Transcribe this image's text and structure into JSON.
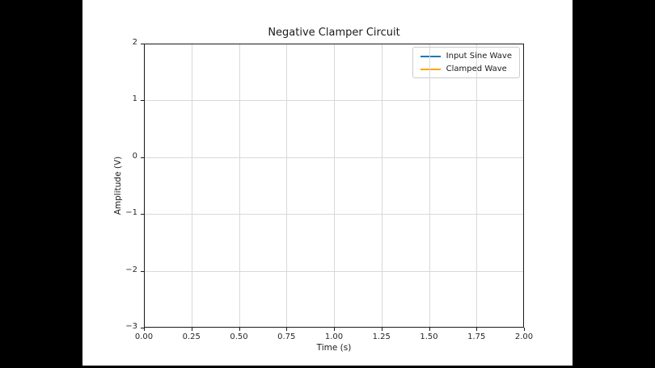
{
  "figure": {
    "title": "Negative Clamper Circuit",
    "xlabel": "Time (s)",
    "ylabel": "Amplitude (V)"
  },
  "axes": {
    "x_tick_labels": [
      "0.00",
      "0.25",
      "0.50",
      "0.75",
      "1.00",
      "1.25",
      "1.50",
      "1.75",
      "2.00"
    ],
    "y_tick_labels": [
      "2",
      "1",
      "0",
      "−1",
      "−2",
      "−3"
    ],
    "grid_color": "#d9d9d9",
    "spine_color": "#1a1a1a"
  },
  "legend": {
    "items": [
      {
        "label": "Input Sine Wave",
        "color": "#1f77b4"
      },
      {
        "label": "Clamped Wave",
        "color": "#ffa500"
      }
    ]
  },
  "chart_data": {
    "type": "line",
    "title": "Negative Clamper Circuit",
    "xlabel": "Time (s)",
    "ylabel": "Amplitude (V)",
    "xlim": [
      0.0,
      2.0
    ],
    "ylim": [
      -3,
      2
    ],
    "xticks": [
      0.0,
      0.25,
      0.5,
      0.75,
      1.0,
      1.25,
      1.5,
      1.75,
      2.0
    ],
    "yticks": [
      2,
      1,
      0,
      -1,
      -2,
      -3
    ],
    "grid": true,
    "legend_position": "upper right",
    "series": [
      {
        "name": "Input Sine Wave",
        "color": "#1f77b4",
        "x": [],
        "y": []
      },
      {
        "name": "Clamped Wave",
        "color": "#ffa500",
        "x": [],
        "y": []
      }
    ]
  }
}
